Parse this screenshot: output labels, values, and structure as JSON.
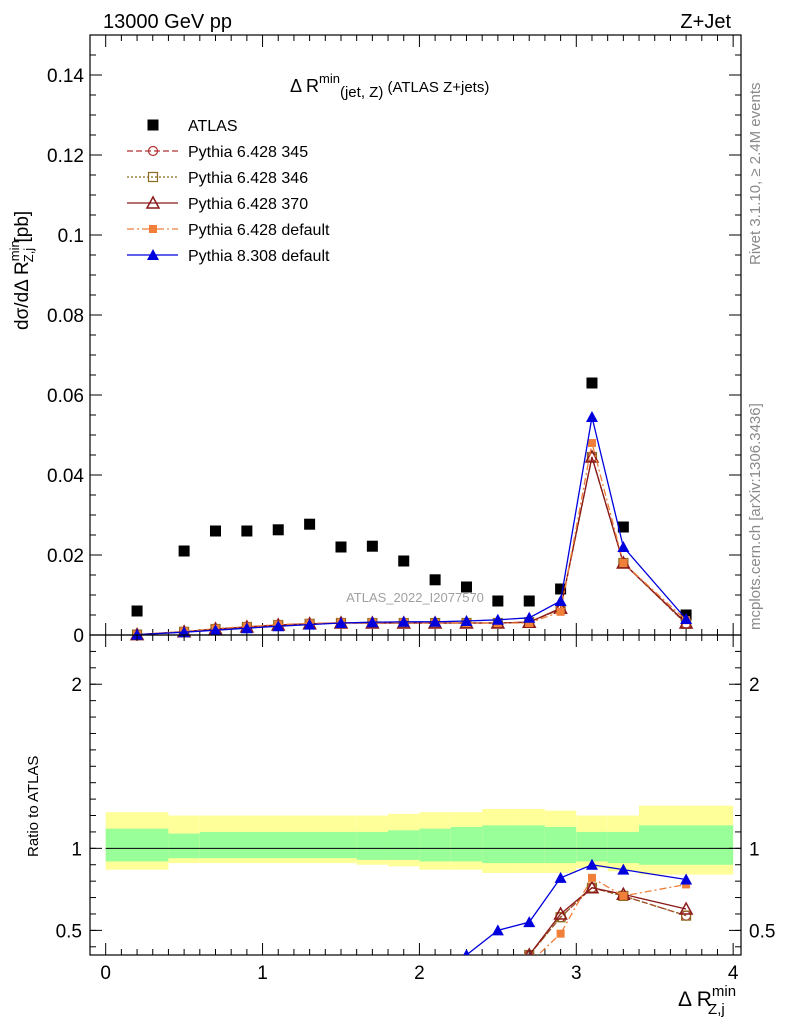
{
  "header": {
    "left": "13000 GeV pp",
    "right": "Z+Jet"
  },
  "side_labels": {
    "rivet": "Rivet 3.1.10, ≥ 2.4M events",
    "mcplots": "mcplots.cern.ch [arXiv:1306.3436]"
  },
  "watermark": "ATLAS_2022_I2077570",
  "chart_data": [
    {
      "type": "line",
      "title_main": "Δ R",
      "title_sup": "min",
      "title_sub": "(jet, Z)",
      "title_tail": " (ATLAS Z+jets)",
      "ylabel": {
        "main": "dσ/dΔ R",
        "sup": "min",
        "sub": "Z,j",
        "tail": " [pb]"
      },
      "xlim": [
        -0.1,
        4.05
      ],
      "ylim": [
        0,
        0.15
      ],
      "yticks": [
        0,
        0.02,
        0.04,
        0.06,
        0.08,
        0.1,
        0.12,
        0.14
      ],
      "ytick_labels": [
        "0",
        "0.02",
        "0.04",
        "0.06",
        "0.08",
        "0.1",
        "0.12",
        "0.14"
      ],
      "legend_position": "top-left",
      "x": [
        0.2,
        0.5,
        0.7,
        0.9,
        1.1,
        1.3,
        1.5,
        1.7,
        1.9,
        2.1,
        2.3,
        2.5,
        2.7,
        2.9,
        3.1,
        3.3,
        3.7
      ],
      "series": [
        {
          "name": "ATLAS",
          "style": "data",
          "marker": "square",
          "color": "#000000",
          "values": [
            0.006,
            0.021,
            0.026,
            0.026,
            0.0263,
            0.0277,
            0.022,
            0.0222,
            0.0185,
            0.0138,
            0.012,
            0.0085,
            0.0085,
            0.0115,
            0.063,
            0.027,
            0.005
          ]
        },
        {
          "name": "Pythia 6.428 345",
          "style": "dashed",
          "marker": "open-circle",
          "color": "#b03030",
          "values": [
            0.0001,
            0.0008,
            0.0015,
            0.002,
            0.0025,
            0.0028,
            0.003,
            0.003,
            0.003,
            0.003,
            0.003,
            0.003,
            0.0032,
            0.0065,
            0.0445,
            0.018,
            0.0028
          ]
        },
        {
          "name": "Pythia 6.428 346",
          "style": "dotted",
          "marker": "open-square",
          "color": "#8b6b1f",
          "values": [
            0.0001,
            0.0008,
            0.0015,
            0.002,
            0.0025,
            0.0028,
            0.003,
            0.003,
            0.003,
            0.003,
            0.003,
            0.003,
            0.0032,
            0.0065,
            0.0445,
            0.018,
            0.0028
          ]
        },
        {
          "name": "Pythia 6.428 370",
          "style": "solid",
          "marker": "open-triangle",
          "color": "#8b1a1a",
          "values": [
            0.0001,
            0.0008,
            0.0015,
            0.002,
            0.0025,
            0.0028,
            0.003,
            0.003,
            0.003,
            0.003,
            0.003,
            0.003,
            0.0032,
            0.0067,
            0.0445,
            0.018,
            0.003
          ]
        },
        {
          "name": "Pythia 6.428 default",
          "style": "dashdot",
          "marker": "filled-square",
          "color": "#f07f3a",
          "values": [
            0.0001,
            0.0009,
            0.0016,
            0.0021,
            0.0026,
            0.0029,
            0.0031,
            0.0031,
            0.0031,
            0.003,
            0.003,
            0.003,
            0.003,
            0.0058,
            0.048,
            0.018,
            0.0037
          ]
        },
        {
          "name": "Pythia 8.308 default",
          "style": "solid",
          "marker": "filled-triangle",
          "color": "#0000dd",
          "values": [
            0.0001,
            0.0007,
            0.0012,
            0.0017,
            0.0022,
            0.0026,
            0.003,
            0.0032,
            0.0033,
            0.0033,
            0.0035,
            0.0038,
            0.0043,
            0.0085,
            0.0545,
            0.022,
            0.004
          ]
        }
      ]
    },
    {
      "type": "line",
      "ylabel": "Ratio to ATLAS",
      "xlabel": {
        "main": "Δ R",
        "sup": "min",
        "sub": "Z,j"
      },
      "xlim": [
        -0.1,
        4.05
      ],
      "ylim": [
        0.35,
        2.3
      ],
      "yticks": [
        0.5,
        1,
        2
      ],
      "ytick_labels": [
        "0.5",
        "1",
        "2"
      ],
      "xticks": [
        0,
        1,
        2,
        3,
        4
      ],
      "xtick_labels": [
        "0",
        "1",
        "2",
        "3",
        "4"
      ],
      "bands": {
        "edges": [
          0.0,
          0.4,
          0.6,
          1.6,
          1.8,
          2.0,
          2.2,
          2.4,
          2.6,
          2.8,
          3.0,
          3.2,
          3.4,
          4.0
        ],
        "outer_color": "#ffff99",
        "inner_color": "#99ff99",
        "outer": [
          [
            0.87,
            1.22
          ],
          [
            0.91,
            1.2
          ],
          [
            0.91,
            1.2
          ],
          [
            0.9,
            1.2
          ],
          [
            0.89,
            1.21
          ],
          [
            0.87,
            1.22
          ],
          [
            0.87,
            1.22
          ],
          [
            0.85,
            1.24
          ],
          [
            0.85,
            1.24
          ],
          [
            0.85,
            1.23
          ],
          [
            0.88,
            1.2
          ],
          [
            0.86,
            1.2
          ],
          [
            0.84,
            1.26
          ]
        ],
        "inner": [
          [
            0.92,
            1.12
          ],
          [
            0.94,
            1.09
          ],
          [
            0.94,
            1.1
          ],
          [
            0.93,
            1.1
          ],
          [
            0.93,
            1.11
          ],
          [
            0.92,
            1.12
          ],
          [
            0.92,
            1.13
          ],
          [
            0.91,
            1.14
          ],
          [
            0.91,
            1.14
          ],
          [
            0.91,
            1.13
          ],
          [
            0.92,
            1.1
          ],
          [
            0.91,
            1.1
          ],
          [
            0.9,
            1.14
          ]
        ]
      },
      "x": [
        2.3,
        2.5,
        2.7,
        2.9,
        3.1,
        3.3,
        3.7
      ],
      "series": [
        {
          "name": "Pythia 6.428 345",
          "style": "dashed",
          "marker": "open-circle",
          "color": "#b03030",
          "values": [
            null,
            null,
            0.35,
            0.58,
            0.76,
            0.71,
            0.59
          ]
        },
        {
          "name": "Pythia 6.428 346",
          "style": "dotted",
          "marker": "open-square",
          "color": "#8b6b1f",
          "values": [
            null,
            null,
            0.35,
            0.58,
            0.76,
            0.71,
            0.59
          ]
        },
        {
          "name": "Pythia 6.428 370",
          "style": "solid",
          "marker": "open-triangle",
          "color": "#8b1a1a",
          "values": [
            null,
            null,
            0.35,
            0.6,
            0.76,
            0.72,
            0.63
          ]
        },
        {
          "name": "Pythia 6.428 default",
          "style": "dashdot",
          "marker": "filled-square",
          "color": "#f07f3a",
          "values": [
            null,
            null,
            0.3,
            0.48,
            0.82,
            0.71,
            0.78
          ]
        },
        {
          "name": "Pythia 8.308 default",
          "style": "solid",
          "marker": "filled-triangle",
          "color": "#0000dd",
          "values": [
            0.35,
            0.5,
            0.55,
            0.82,
            0.9,
            0.87,
            0.81
          ]
        }
      ]
    }
  ]
}
